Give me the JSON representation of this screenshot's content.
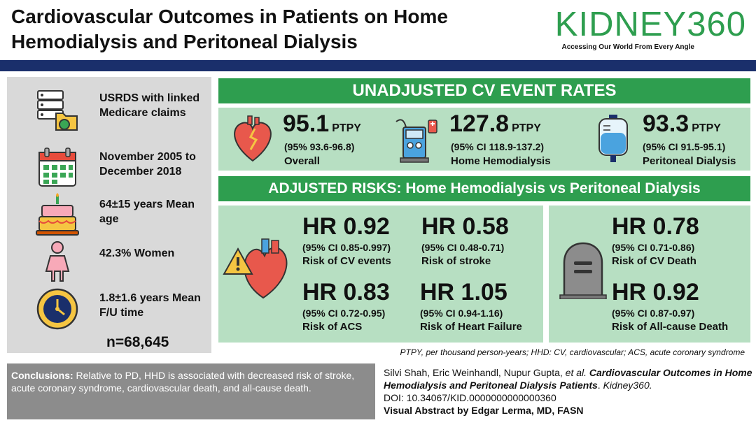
{
  "header": {
    "title_line1": "Cardiovascular Outcomes in Patients on Home",
    "title_line2": "Hemodialysis and Peritoneal Dialysis",
    "brand": "KIDNEY360",
    "tagline": "Accessing Our World From Every Angle"
  },
  "colors": {
    "brand_green": "#2e9e4f",
    "panel_green": "#b7dfc2",
    "navy_bar": "#1a2f6b",
    "left_panel_gray": "#d9d9d9",
    "conclusion_gray": "#8c8c8c"
  },
  "left_panel": {
    "items": [
      {
        "icon": "database-folder-icon",
        "text": "USRDS with linked Medicare claims"
      },
      {
        "icon": "calendar-icon",
        "text": "November 2005 to December 2018"
      },
      {
        "icon": "birthday-cake-icon",
        "text": "64±15 years Mean age"
      },
      {
        "icon": "woman-icon",
        "text": "42.3% Women"
      },
      {
        "icon": "clock-icon",
        "text": "1.8±1.6 years Mean F/U time"
      }
    ],
    "n": "n=68,645"
  },
  "unadjusted": {
    "banner": "UNADJUSTED CV EVENT RATES",
    "rates": [
      {
        "icon": "broken-heart-icon",
        "value": "95.1",
        "unit": "PTPY",
        "ci": "(95% 93.6-96.8)",
        "label": "Overall"
      },
      {
        "icon": "dialysis-machine-icon",
        "value": "127.8",
        "unit": "PTPY",
        "ci": "(95% CI 118.9-137.2)",
        "label": "Home Hemodialysis"
      },
      {
        "icon": "iv-bag-icon",
        "value": "93.3",
        "unit": "PTPY",
        "ci": "(95% CI 91.5-95.1)",
        "label": "Peritoneal Dialysis"
      }
    ]
  },
  "adjusted": {
    "banner": "ADJUSTED RISKS: Home Hemodialysis vs Peritoneal Dialysis",
    "hrs": [
      {
        "value": "HR 0.92",
        "ci": "(95% CI 0.85-0.997)",
        "label": "Risk of CV events"
      },
      {
        "value": "HR 0.58",
        "ci": "(95% CI 0.48-0.71)",
        "label": "Risk of stroke"
      },
      {
        "value": "HR 0.83",
        "ci": "(95% CI 0.72-0.95)",
        "label": "Risk of ACS"
      },
      {
        "value": "HR 1.05",
        "ci": "(95% CI 0.94-1.16)",
        "label": "Risk of Heart Failure"
      },
      {
        "value": "HR 0.78",
        "ci": "(95% CI 0.71-0.86)",
        "label": "Risk of CV Death"
      },
      {
        "value": "HR 0.92",
        "ci": "(95% CI 0.87-0.97)",
        "label": "Risk of All-cause Death"
      }
    ]
  },
  "footnote": "PTPY, per thousand person-years; HHD: CV, cardiovascular; ACS, acute coronary syndrome",
  "conclusion": {
    "label": "Conclusions:",
    "text": " Relative to PD, HHD is associated with decreased risk of stroke, acute coronary syndrome, cardiovascular death, and all-cause death."
  },
  "citation": {
    "authors": "Silvi Shah, Eric Weinhandl, Nupur Gupta, ",
    "etal": "et al.",
    "title": "Cardiovascular Outcomes in Home Hemodialysis and Peritoneal Dialysis Patients",
    "journal": "Kidney360.",
    "doi": "DOI: 10.34067/KID.0000000000000360",
    "credit": "Visual Abstract by Edgar Lerma, MD, FASN"
  }
}
